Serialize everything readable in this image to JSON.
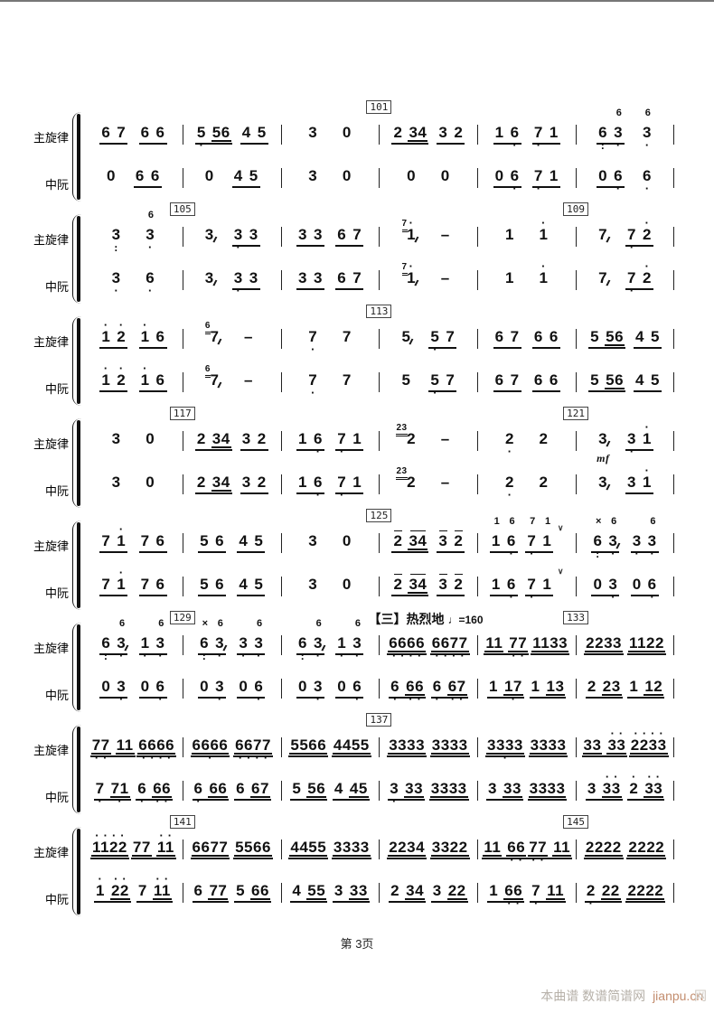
{
  "page": {
    "footer": "第 3页",
    "watermark_text": "本曲谱 数谱简谱网",
    "watermark_link": "jianpu.cn",
    "watermark_ghost": "网",
    "notation_type": "jianpu numbered musical notation, two-instrument ensemble score"
  },
  "labels": {
    "row1": "主旋律",
    "row2": "中阮"
  },
  "section_mark": {
    "text": "【三】热烈地",
    "tempo": "♩=160"
  },
  "measure_number_boxes": [
    "101",
    "105",
    "109",
    "113",
    "117",
    "121",
    "125",
    "129",
    "133",
    "137",
    "141",
    "145"
  ],
  "systems": [
    {
      "markers": [
        {
          "t": "101",
          "m": 3
        }
      ],
      "melody": [
        [
          "_6 7",
          "_6 6"
        ],
        [
          "_5. 56",
          "_4 5"
        ],
        [
          "3",
          "0"
        ],
        [
          "_2 34",
          "_3 2"
        ],
        [
          "_1 6.",
          "_7. 1"
        ],
        [
          "_6: 3.^6",
          "3.^6"
        ]
      ],
      "ruan": [
        [
          "0",
          "_6 6"
        ],
        [
          "0",
          "_4 5"
        ],
        [
          "3",
          "0"
        ],
        [
          "0",
          "0"
        ],
        [
          "_0 6.",
          "_7. 1"
        ],
        [
          "_0 6.",
          "6."
        ]
      ]
    },
    {
      "markers": [
        {
          "t": "105",
          "m": 1
        },
        {
          "t": "109",
          "m": 5
        }
      ],
      "melody": [
        [
          "3:",
          "3.^6"
        ],
        [
          "3~",
          "_3. 3"
        ],
        [
          "_3 3",
          "_6 7"
        ],
        [
          "(7)1'~",
          "-"
        ],
        [
          "1",
          "1'"
        ],
        [
          "7~",
          "_7. 2'"
        ]
      ],
      "ruan": [
        [
          "3.",
          "6."
        ],
        [
          "3~",
          "_3. 3"
        ],
        [
          "_3 3",
          "_6 7"
        ],
        [
          "(7)1'~",
          "-"
        ],
        [
          "1",
          "1'"
        ],
        [
          "7~",
          "_7. 2'"
        ]
      ]
    },
    {
      "markers": [
        {
          "t": "113",
          "m": 3
        }
      ],
      "melody": [
        [
          "_1' 2'",
          "_1' 6"
        ],
        [
          "(6)7~",
          "-"
        ],
        [
          "7.",
          "7"
        ],
        [
          "5~",
          "_5. 7"
        ],
        [
          "_6 7",
          "_6 6"
        ],
        [
          "_5 56",
          "_4 5"
        ]
      ],
      "ruan": [
        [
          "_1' 2'",
          "_1' 6"
        ],
        [
          "(6)7~",
          "-"
        ],
        [
          "7.",
          "7"
        ],
        [
          "5",
          "_5. 7"
        ],
        [
          "_6 7",
          "_6 6"
        ],
        [
          "_5 56",
          "_4 5"
        ]
      ]
    },
    {
      "markers": [
        {
          "t": "117",
          "m": 1
        },
        {
          "t": "121",
          "m": 5
        }
      ],
      "melody": [
        [
          "3",
          "0"
        ],
        [
          "_2 34",
          "_3 2"
        ],
        [
          "_1 6.",
          "_7. 1"
        ],
        [
          "(23)2",
          "-"
        ],
        [
          "2.",
          "2"
        ],
        [
          "3~@mf",
          "_3. 1'"
        ]
      ],
      "ruan": [
        [
          "3",
          "0"
        ],
        [
          "_2 34",
          "_3 2"
        ],
        [
          "_1 6.",
          "_7. 1"
        ],
        [
          "(23)2",
          "-"
        ],
        [
          "2.",
          "2"
        ],
        [
          "3~",
          "_3 1'"
        ]
      ]
    },
    {
      "markers": [
        {
          "t": "125",
          "m": 3
        }
      ],
      "melody": [
        [
          "_7 1'",
          "_7 6"
        ],
        [
          "_5 6",
          "_4 5"
        ],
        [
          "3",
          "0"
        ],
        [
          "_2- 34-",
          "_3- 2-"
        ],
        [
          "_1^1 6.^6",
          "_7.^7 1^1",
          "v"
        ],
        [
          "_6:^x 3.^6~",
          "_3. 3.^6"
        ]
      ],
      "ruan": [
        [
          "_7 1'",
          "_7 6"
        ],
        [
          "_5 6",
          "_4 5"
        ],
        [
          "3",
          "0"
        ],
        [
          "_2- 34-",
          "_3- 2-"
        ],
        [
          "_1 6.",
          "_7. 1",
          "v"
        ],
        [
          "_0 3.",
          "_0 6."
        ]
      ]
    },
    {
      "markers": [
        {
          "t": "129",
          "m": 1
        },
        {
          "t": "133",
          "m": 5
        }
      ],
      "section_m": 3,
      "melody": [
        [
          "_6: 3.^6~",
          "_1. 3.^6"
        ],
        [
          "_6:^x 3.^6~",
          "_3. 3.^6"
        ],
        [
          "_6: 3.^6~",
          "_1. 3.^6"
        ],
        [
          "=6666:>",
          "=6677:"
        ],
        [
          "=11 77:",
          "=1133"
        ],
        [
          "=2233",
          "=1122"
        ]
      ],
      "ruan": [
        [
          "_0 3.",
          "_0 6."
        ],
        [
          "_0 3.",
          "_0 6."
        ],
        [
          "_0 3.",
          "_0 6."
        ],
        [
          "_6. 66:",
          "_6. 67:"
        ],
        [
          "_1 17.",
          "_1 13"
        ],
        [
          "_2 23",
          "_1 12"
        ]
      ]
    },
    {
      "markers": [
        {
          "t": "137",
          "m": 3
        }
      ],
      "melody": [
        [
          "=77: 11",
          "=6666:"
        ],
        [
          "=6666.",
          "=6677:"
        ],
        [
          "=5566",
          "=4455"
        ],
        [
          "=3333",
          "=3333"
        ],
        [
          "=3333.",
          "=3333"
        ],
        [
          "=33 33'",
          "=2233'"
        ]
      ],
      "ruan": [
        [
          "_7. 71.",
          "_6. 66:"
        ],
        [
          "_6. 66",
          "_6 67"
        ],
        [
          "_5 56",
          "_4 45"
        ],
        [
          "_3. 33",
          "=3333"
        ],
        [
          "_3 33",
          "=3333"
        ],
        [
          "_3 33'",
          "_2' 33'"
        ]
      ]
    },
    {
      "markers": [
        {
          "t": "141",
          "m": 1
        },
        {
          "t": "145",
          "m": 5
        }
      ],
      "melody": [
        [
          "=1122'",
          "=77 11'"
        ],
        [
          "=6677",
          "=5566"
        ],
        [
          "=4455",
          "=3333"
        ],
        [
          "=2234",
          "=3322"
        ],
        [
          "=11 66:",
          "=77: 11"
        ],
        [
          "=2222",
          "=2222"
        ]
      ],
      "ruan": [
        [
          "_1' 22'",
          "_7 11'"
        ],
        [
          "_6 77",
          "_5 66"
        ],
        [
          "_4 55",
          "_3 33"
        ],
        [
          "_2 34",
          "_3 22"
        ],
        [
          "_1 66:",
          "_7. 11"
        ],
        [
          "_2. 22",
          "=2222"
        ]
      ]
    }
  ]
}
